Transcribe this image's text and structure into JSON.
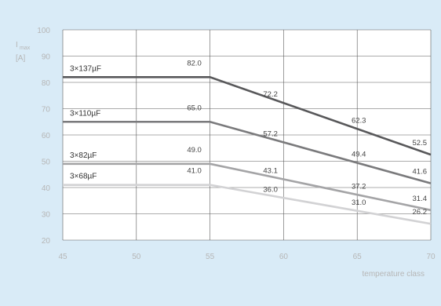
{
  "chart_data": {
    "type": "line",
    "title": "",
    "ylabel": "I",
    "ylabel_sub": "max",
    "ylabel_unit": "[A]",
    "xlabel": "temperature class",
    "x_ticks": [
      45,
      50,
      55,
      60,
      65,
      70
    ],
    "y_ticks": [
      20,
      30,
      40,
      50,
      60,
      70,
      80,
      90,
      100
    ],
    "xlim": [
      45,
      70
    ],
    "ylim": [
      20,
      100
    ],
    "grid": true,
    "series": [
      {
        "name": "3×137µF",
        "color": "#58585a",
        "x": [
          45,
          55,
          70
        ],
        "y": [
          82.0,
          82.0,
          52.5
        ],
        "labels": [
          {
            "x": 55,
            "y": 82.0,
            "text": "82.0"
          },
          {
            "x": 59,
            "y": 72.2,
            "text": "72.2"
          },
          {
            "x": 65,
            "y": 62.3,
            "text": "62.3"
          },
          {
            "x": 70,
            "y": 52.5,
            "text": "52.5"
          }
        ]
      },
      {
        "name": "3×110µF",
        "color": "#7a7a7c",
        "x": [
          45,
          55,
          70
        ],
        "y": [
          65.0,
          65.0,
          41.6
        ],
        "labels": [
          {
            "x": 55,
            "y": 65.0,
            "text": "65.0"
          },
          {
            "x": 59,
            "y": 57.2,
            "text": "57.2"
          },
          {
            "x": 65,
            "y": 49.4,
            "text": "49.4"
          },
          {
            "x": 70,
            "y": 41.6,
            "text": "41.6"
          }
        ]
      },
      {
        "name": "3×82µF",
        "color": "#a4a4a6",
        "x": [
          45,
          55,
          70
        ],
        "y": [
          49.0,
          49.0,
          31.4
        ],
        "labels": [
          {
            "x": 55,
            "y": 49.0,
            "text": "49.0"
          },
          {
            "x": 59,
            "y": 43.1,
            "text": "43.1"
          },
          {
            "x": 65,
            "y": 37.2,
            "text": "37.2"
          },
          {
            "x": 70,
            "y": 31.4,
            "text": "31.4"
          }
        ]
      },
      {
        "name": "3×68µF",
        "color": "#d2d2d4",
        "x": [
          45,
          55,
          70
        ],
        "y": [
          41.0,
          41.0,
          26.2
        ],
        "labels": [
          {
            "x": 55,
            "y": 41.0,
            "text": "41.0"
          },
          {
            "x": 59,
            "y": 36.0,
            "text": "36.0"
          },
          {
            "x": 65,
            "y": 31.0,
            "text": "31.0"
          },
          {
            "x": 70,
            "y": 26.2,
            "text": "26.2"
          }
        ]
      }
    ]
  }
}
